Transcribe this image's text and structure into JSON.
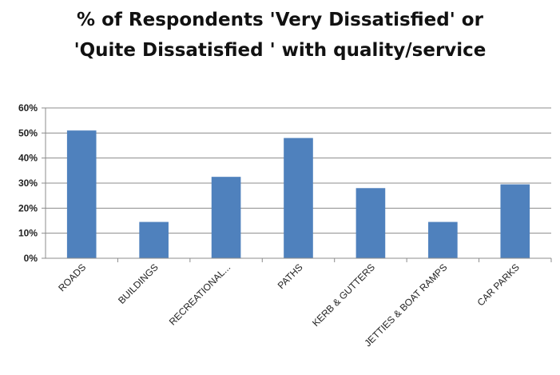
{
  "chart_data": {
    "type": "bar",
    "title": [
      "% of Respondents 'Very Dissatisfied' or",
      "'Quite Dissatisfied ' with quality/service"
    ],
    "categories": [
      "ROADS",
      "BUILDINGS",
      "RECREATIONAL...",
      "PATHS",
      "KERB & GUTTERS",
      "JETTIES & BOAT RAMPS",
      "CAR PARKS"
    ],
    "values": [
      51,
      14.5,
      32.5,
      48,
      28,
      14.5,
      29.5
    ],
    "ylim": [
      0,
      60
    ],
    "yticks": [
      "0%",
      "10%",
      "20%",
      "30%",
      "40%",
      "50%",
      "60%"
    ],
    "grid": true,
    "bar_color": "#4f81bd"
  }
}
